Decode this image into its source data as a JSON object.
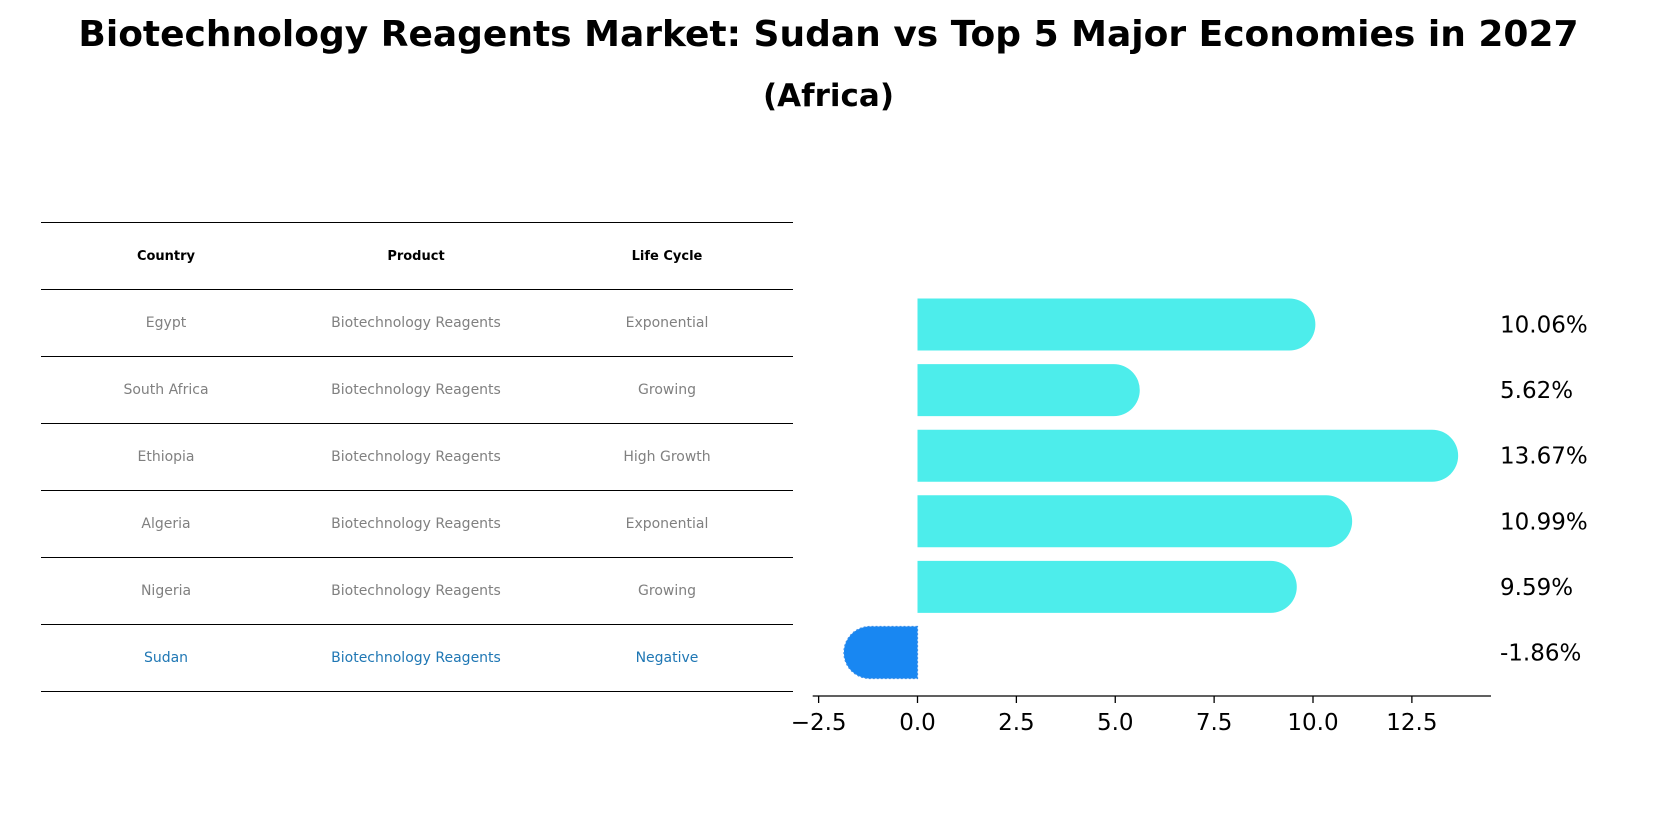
{
  "title": "Biotechnology Reagents Market: Sudan vs Top 5 Major Economies in 2027",
  "subtitle": "(Africa)",
  "table": {
    "headers": [
      "Country",
      "Product",
      "Life Cycle"
    ],
    "rows": [
      {
        "country": "Egypt",
        "product": "Biotechnology Reagents",
        "life_cycle": "Exponential"
      },
      {
        "country": "South Africa",
        "product": "Biotechnology Reagents",
        "life_cycle": "Growing"
      },
      {
        "country": "Ethiopia",
        "product": "Biotechnology Reagents",
        "life_cycle": "High Growth"
      },
      {
        "country": "Algeria",
        "product": "Biotechnology Reagents",
        "life_cycle": "Exponential"
      },
      {
        "country": "Nigeria",
        "product": "Biotechnology Reagents",
        "life_cycle": "Growing"
      },
      {
        "country": "Sudan",
        "product": "Biotechnology Reagents",
        "life_cycle": "Negative"
      }
    ]
  },
  "chart_data": {
    "type": "bar",
    "orientation": "horizontal",
    "categories": [
      "Egypt",
      "South Africa",
      "Ethiopia",
      "Algeria",
      "Nigeria",
      "Sudan"
    ],
    "values": [
      10.06,
      5.62,
      13.67,
      10.99,
      9.59,
      -1.86
    ],
    "value_labels": [
      "10.06%",
      "5.62%",
      "13.67%",
      "10.99%",
      "9.59%",
      "-1.86%"
    ],
    "xlim": [
      -2.65,
      14.5
    ],
    "xticks": [
      -2.5,
      0.0,
      2.5,
      5.0,
      7.5,
      10.0,
      12.5
    ],
    "xtick_labels": [
      "−2.5",
      "0.0",
      "2.5",
      "5.0",
      "7.5",
      "10.0",
      "12.5"
    ],
    "grid": false,
    "colors": {
      "others": "#4DEDEB",
      "highlight": "#1887F2"
    },
    "highlight": "Sudan"
  }
}
